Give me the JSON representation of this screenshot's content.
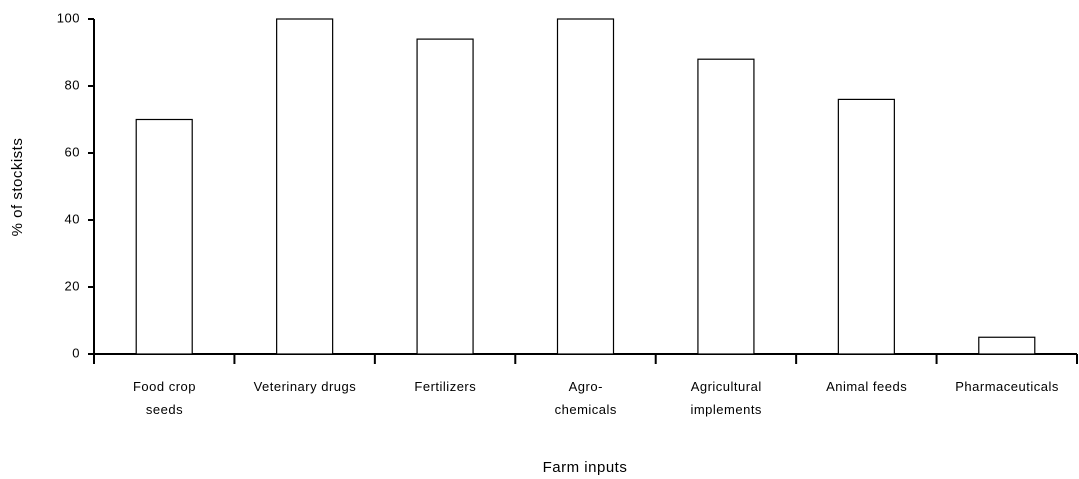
{
  "chart_data": {
    "type": "bar",
    "categories": [
      "Food crop\nseeds",
      "Veterinary   drugs",
      "Fertilizers",
      "Agro-\nchemicals",
      "Agricultural\nimplements",
      "Animal feeds",
      "Pharmaceuticals"
    ],
    "values": [
      70,
      100,
      94,
      100,
      88,
      76,
      5
    ],
    "color": "#ffffff",
    "x_label": "Farm inputs",
    "y_label": "% of stockists",
    "ylim": [
      0,
      100
    ],
    "yticks": [
      0,
      20,
      40,
      60,
      80,
      100
    ],
    "grid": false
  }
}
